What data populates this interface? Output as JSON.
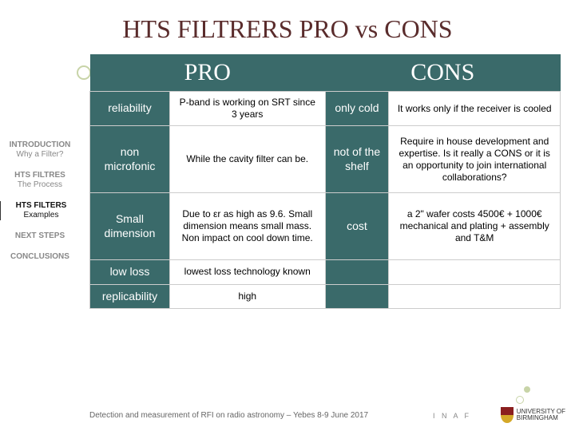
{
  "title": "HTS FILTRERS  PRO vs CONS",
  "sidebar": {
    "items": [
      {
        "label": "INTRODUCTION",
        "sub": "Why a Filter?"
      },
      {
        "label": "HTS FILTRES",
        "sub": "The Process"
      },
      {
        "label": "HTS FILTERS",
        "sub": "Examples"
      },
      {
        "label": "NEXT STEPS",
        "sub": ""
      },
      {
        "label": "CONCLUSIONS",
        "sub": ""
      }
    ],
    "active_index": 2
  },
  "table": {
    "headers": {
      "pro": "PRO",
      "cons": "CONS"
    },
    "rows": [
      {
        "pro_label": "reliability",
        "pro_desc": "P-band is working on SRT since 3 years",
        "con_label": "only cold",
        "con_desc": "It works only if the receiver is cooled"
      },
      {
        "pro_label": "non microfonic",
        "pro_desc": "While the cavity filter can be.",
        "con_label": "not of the shelf",
        "con_desc": "Require in house development and expertise.\nIs it really a CONS or it is an opportunity to join international collaborations?"
      },
      {
        "pro_label": "Small dimension",
        "pro_desc": "Due to εr as high as 9.6.\nSmall dimension means small mass. Non impact on cool down time.",
        "con_label": "cost",
        "con_desc": "a 2\" wafer costs 4500€\n+ 1000€ mechanical and plating\n+ assembly and T&M"
      },
      {
        "pro_label": "low loss",
        "pro_desc": "lowest loss technology known",
        "con_label": "",
        "con_desc": ""
      },
      {
        "pro_label": "replicability",
        "pro_desc": "high",
        "con_label": "",
        "con_desc": ""
      }
    ]
  },
  "footer": "Detection and measurement of RFI on radio astronomy – Yebes 8-9 June 2017",
  "logos": {
    "inaf": "I N A F",
    "univ_line1": "UNIVERSITY OF",
    "univ_line2": "BIRMINGHAM"
  },
  "styling": {
    "title_color": "#5a2c2c",
    "header_bg": "#3a6a6a",
    "header_fg": "#ffffff",
    "border_color": "#cccccc",
    "accent_circle": "#c8d4a8",
    "title_fontsize": 32,
    "header_fontsize": 30,
    "cell_fontsize": 12,
    "label_fontsize": 14
  }
}
